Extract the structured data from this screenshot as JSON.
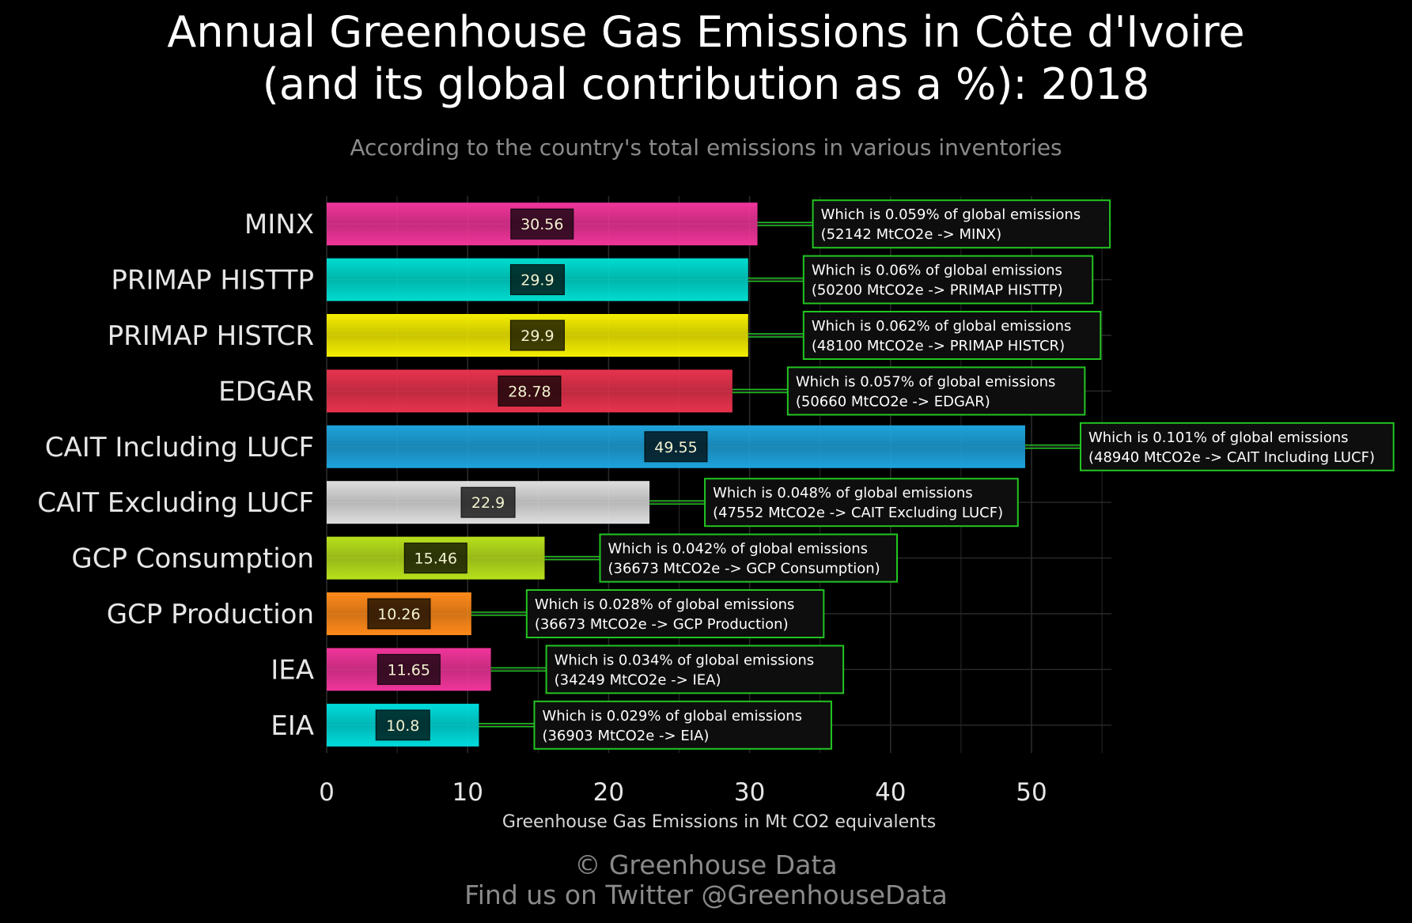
{
  "title_line1": "Annual Greenhouse Gas Emissions in Côte d'Ivoire",
  "title_line2": "(and its global contribution as a %): 2018",
  "subtitle": "According to the country's total emissions in various inventories",
  "footer_line1": "© Greenhouse Data",
  "footer_line2": "Find us on Twitter @GreenhouseData",
  "chart_data": {
    "type": "bar",
    "orientation": "horizontal",
    "xlabel": "Greenhouse Gas Emissions in Mt CO2 equivalents",
    "ylabel": "",
    "xlim": [
      0,
      55
    ],
    "xticks": [
      0,
      10,
      20,
      30,
      40,
      50
    ],
    "grid": true,
    "categories": [
      "MINX",
      "PRIMAP HISTTP",
      "PRIMAP HISTCR",
      "EDGAR",
      "CAIT Including LUCF",
      "CAIT Excluding LUCF",
      "GCP Consumption",
      "GCP Production",
      "IEA",
      "EIA"
    ],
    "values": [
      30.56,
      29.9,
      29.9,
      28.78,
      49.55,
      22.9,
      15.46,
      10.26,
      11.65,
      10.8
    ],
    "value_labels": [
      "30.56",
      "29.9",
      "29.9",
      "28.78",
      "49.55",
      "22.9",
      "15.46",
      "10.26",
      "11.65",
      "10.8"
    ],
    "colors": [
      "#f0359a",
      "#00dcd0",
      "#f5ee00",
      "#e8334e",
      "#1ea3dc",
      "#dedede",
      "#b8e01c",
      "#ff8a1a",
      "#f0359a",
      "#00dcdc"
    ],
    "annotations": [
      {
        "line1": "Which is 0.059% of global emissions",
        "line2": "(52142 MtCO2e -> MINX)"
      },
      {
        "line1": "Which is 0.06% of global emissions",
        "line2": "(50200 MtCO2e -> PRIMAP HISTTP)"
      },
      {
        "line1": "Which is 0.062% of global emissions",
        "line2": "(48100 MtCO2e -> PRIMAP HISTCR)"
      },
      {
        "line1": "Which is 0.057% of global emissions",
        "line2": "(50660 MtCO2e -> EDGAR)"
      },
      {
        "line1": "Which is 0.101% of global emissions",
        "line2": "(48940 MtCO2e -> CAIT Including LUCF)"
      },
      {
        "line1": "Which is 0.048% of global emissions",
        "line2": "(47552 MtCO2e -> CAIT Excluding LUCF)"
      },
      {
        "line1": "Which is 0.042% of global emissions",
        "line2": "(36673 MtCO2e -> GCP Consumption)"
      },
      {
        "line1": "Which is 0.028% of global emissions",
        "line2": "(36673 MtCO2e -> GCP Production)"
      },
      {
        "line1": "Which is 0.034% of global emissions",
        "line2": "(34249 MtCO2e -> IEA)"
      },
      {
        "line1": "Which is 0.029% of global emissions",
        "line2": "(36903 MtCO2e -> EIA)"
      }
    ],
    "annotation_border_color": "#22c522",
    "grid_color": "#2a2a2a"
  }
}
